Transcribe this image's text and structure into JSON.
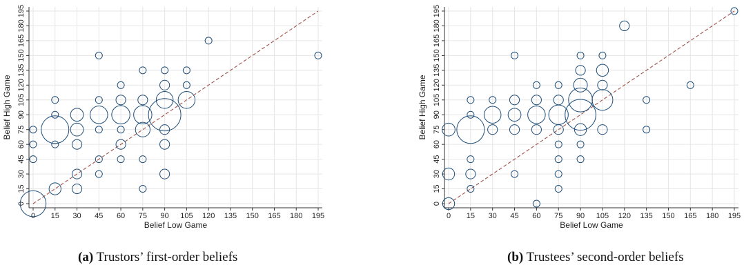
{
  "colors": {
    "marker": "#1f4e79",
    "fit_line": "#a0524a",
    "grid": "#e6e6e6",
    "axis": "#333333"
  },
  "captions": [
    {
      "label": "(a)",
      "text": "Trustors’ first-order beliefs"
    },
    {
      "label": "(b)",
      "text": "Trustees’ second-order beliefs"
    }
  ],
  "chart_data": [
    {
      "type": "scatter",
      "subtype": "bubble",
      "xlabel": "Belief Low Game",
      "ylabel": "Belief High Game",
      "xlim": [
        0,
        195
      ],
      "ylim": [
        0,
        195
      ],
      "xticks": [
        0,
        15,
        30,
        45,
        60,
        75,
        90,
        105,
        120,
        135,
        150,
        165,
        180,
        195
      ],
      "yticks": [
        0,
        15,
        30,
        45,
        60,
        75,
        90,
        105,
        120,
        135,
        150,
        165,
        180,
        195
      ],
      "grid": true,
      "reference_line": "y = x (dashed)",
      "points": [
        {
          "x": 0,
          "y": 0,
          "size": 14
        },
        {
          "x": 0,
          "y": 45,
          "size": 1
        },
        {
          "x": 0,
          "y": 60,
          "size": 1
        },
        {
          "x": 0,
          "y": 75,
          "size": 1
        },
        {
          "x": 15,
          "y": 15,
          "size": 3
        },
        {
          "x": 15,
          "y": 60,
          "size": 1
        },
        {
          "x": 15,
          "y": 75,
          "size": 16
        },
        {
          "x": 15,
          "y": 90,
          "size": 1
        },
        {
          "x": 15,
          "y": 105,
          "size": 1
        },
        {
          "x": 30,
          "y": 15,
          "size": 2
        },
        {
          "x": 30,
          "y": 30,
          "size": 2
        },
        {
          "x": 30,
          "y": 60,
          "size": 2
        },
        {
          "x": 30,
          "y": 75,
          "size": 3.5
        },
        {
          "x": 30,
          "y": 90,
          "size": 3.5
        },
        {
          "x": 45,
          "y": 30,
          "size": 1
        },
        {
          "x": 45,
          "y": 45,
          "size": 1
        },
        {
          "x": 45,
          "y": 75,
          "size": 1
        },
        {
          "x": 45,
          "y": 90,
          "size": 6.5
        },
        {
          "x": 45,
          "y": 105,
          "size": 1
        },
        {
          "x": 45,
          "y": 150,
          "size": 1
        },
        {
          "x": 60,
          "y": 45,
          "size": 1
        },
        {
          "x": 60,
          "y": 60,
          "size": 2
        },
        {
          "x": 60,
          "y": 75,
          "size": 1
        },
        {
          "x": 60,
          "y": 90,
          "size": 7
        },
        {
          "x": 60,
          "y": 105,
          "size": 2
        },
        {
          "x": 60,
          "y": 120,
          "size": 1
        },
        {
          "x": 75,
          "y": 15,
          "size": 1
        },
        {
          "x": 75,
          "y": 45,
          "size": 1
        },
        {
          "x": 75,
          "y": 75,
          "size": 4.5
        },
        {
          "x": 75,
          "y": 90,
          "size": 7
        },
        {
          "x": 75,
          "y": 105,
          "size": 2
        },
        {
          "x": 75,
          "y": 135,
          "size": 1
        },
        {
          "x": 90,
          "y": 30,
          "size": 2
        },
        {
          "x": 90,
          "y": 60,
          "size": 2
        },
        {
          "x": 90,
          "y": 75,
          "size": 2
        },
        {
          "x": 90,
          "y": 90,
          "size": 22
        },
        {
          "x": 90,
          "y": 105,
          "size": 6
        },
        {
          "x": 90,
          "y": 120,
          "size": 2
        },
        {
          "x": 90,
          "y": 135,
          "size": 1
        },
        {
          "x": 105,
          "y": 105,
          "size": 6
        },
        {
          "x": 105,
          "y": 120,
          "size": 1
        },
        {
          "x": 105,
          "y": 135,
          "size": 1
        },
        {
          "x": 120,
          "y": 165,
          "size": 1
        },
        {
          "x": 195,
          "y": 150,
          "size": 1
        }
      ]
    },
    {
      "type": "scatter",
      "subtype": "bubble",
      "xlabel": "Belief Low Game",
      "ylabel": "Belief High Game",
      "xlim": [
        0,
        195
      ],
      "ylim": [
        0,
        195
      ],
      "xticks": [
        0,
        15,
        30,
        45,
        60,
        75,
        90,
        105,
        120,
        135,
        150,
        165,
        180,
        195
      ],
      "yticks": [
        0,
        15,
        30,
        45,
        60,
        75,
        90,
        105,
        120,
        135,
        150,
        165,
        180,
        195
      ],
      "grid": true,
      "reference_line": "y = x (dashed)",
      "points": [
        {
          "x": 0,
          "y": 0,
          "size": 3
        },
        {
          "x": 0,
          "y": 30,
          "size": 3
        },
        {
          "x": 0,
          "y": 75,
          "size": 3.5
        },
        {
          "x": 15,
          "y": 15,
          "size": 1
        },
        {
          "x": 15,
          "y": 30,
          "size": 2
        },
        {
          "x": 15,
          "y": 45,
          "size": 1
        },
        {
          "x": 15,
          "y": 75,
          "size": 16
        },
        {
          "x": 15,
          "y": 90,
          "size": 1
        },
        {
          "x": 15,
          "y": 105,
          "size": 1
        },
        {
          "x": 30,
          "y": 75,
          "size": 2
        },
        {
          "x": 30,
          "y": 90,
          "size": 6
        },
        {
          "x": 30,
          "y": 105,
          "size": 1
        },
        {
          "x": 45,
          "y": 30,
          "size": 1
        },
        {
          "x": 45,
          "y": 75,
          "size": 2
        },
        {
          "x": 45,
          "y": 90,
          "size": 3.5
        },
        {
          "x": 45,
          "y": 105,
          "size": 2
        },
        {
          "x": 45,
          "y": 150,
          "size": 1
        },
        {
          "x": 60,
          "y": 0,
          "size": 1
        },
        {
          "x": 60,
          "y": 75,
          "size": 2
        },
        {
          "x": 60,
          "y": 90,
          "size": 6.5
        },
        {
          "x": 60,
          "y": 105,
          "size": 2
        },
        {
          "x": 60,
          "y": 120,
          "size": 1
        },
        {
          "x": 75,
          "y": 15,
          "size": 1
        },
        {
          "x": 75,
          "y": 30,
          "size": 1
        },
        {
          "x": 75,
          "y": 45,
          "size": 1
        },
        {
          "x": 75,
          "y": 60,
          "size": 1
        },
        {
          "x": 75,
          "y": 75,
          "size": 2
        },
        {
          "x": 75,
          "y": 90,
          "size": 8
        },
        {
          "x": 75,
          "y": 105,
          "size": 2
        },
        {
          "x": 75,
          "y": 120,
          "size": 1
        },
        {
          "x": 90,
          "y": 45,
          "size": 1
        },
        {
          "x": 90,
          "y": 60,
          "size": 1
        },
        {
          "x": 90,
          "y": 75,
          "size": 3
        },
        {
          "x": 90,
          "y": 90,
          "size": 20
        },
        {
          "x": 90,
          "y": 105,
          "size": 12
        },
        {
          "x": 90,
          "y": 120,
          "size": 4
        },
        {
          "x": 90,
          "y": 135,
          "size": 2
        },
        {
          "x": 90,
          "y": 150,
          "size": 1
        },
        {
          "x": 105,
          "y": 75,
          "size": 2
        },
        {
          "x": 105,
          "y": 105,
          "size": 9
        },
        {
          "x": 105,
          "y": 120,
          "size": 2
        },
        {
          "x": 105,
          "y": 135,
          "size": 3
        },
        {
          "x": 105,
          "y": 150,
          "size": 1
        },
        {
          "x": 120,
          "y": 180,
          "size": 2
        },
        {
          "x": 135,
          "y": 75,
          "size": 1
        },
        {
          "x": 135,
          "y": 105,
          "size": 1
        },
        {
          "x": 165,
          "y": 120,
          "size": 1
        },
        {
          "x": 195,
          "y": 195,
          "size": 1
        }
      ]
    }
  ]
}
